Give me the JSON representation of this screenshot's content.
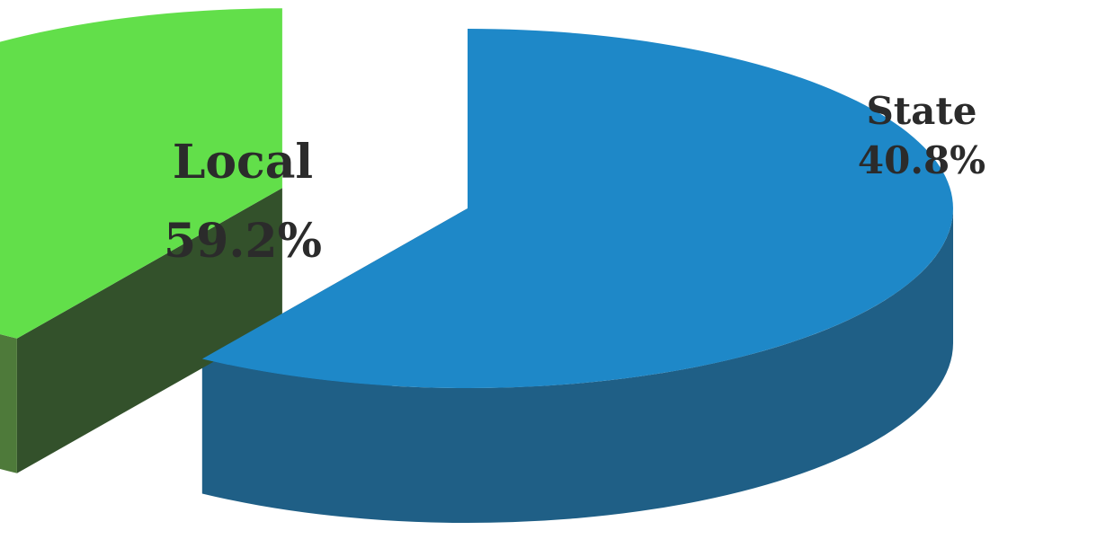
{
  "chart_data": {
    "type": "pie",
    "style": "3d-exploded",
    "slices": [
      {
        "name": "Local",
        "value": 59.2,
        "label": "59.2%",
        "top_color": "#1E88C8",
        "side_color": "#1F5F86",
        "dark_side_color": "#1B3F58"
      },
      {
        "name": "State",
        "value": 40.8,
        "label": "40.8%",
        "top_color": "#62DF4A",
        "side_color": "#4E7A3A",
        "dark_side_color": "#33512B"
      }
    ],
    "legend": "none",
    "grid": false
  }
}
